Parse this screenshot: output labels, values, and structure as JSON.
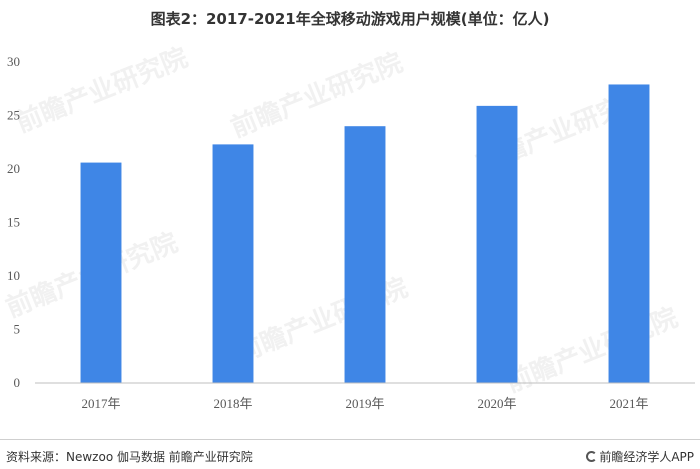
{
  "watermark_text": "前瞻产业研究院",
  "footer": {
    "source": "资料来源：Newzoo 伽马数据 前瞻产业研究院",
    "brand": "前瞻经济学人APP",
    "brand_icon": "qianzhan-logo-icon"
  },
  "chart_data": {
    "type": "bar",
    "title": "图表2：2017-2021年全球移动游戏用户规模(单位：亿人)",
    "xlabel": "",
    "ylabel": "",
    "categories": [
      "2017年",
      "2018年",
      "2019年",
      "2020年",
      "2021年"
    ],
    "series": [
      {
        "values": [
          20.6,
          22.3,
          24.0,
          25.9,
          27.9
        ]
      }
    ],
    "ylim": [
      0,
      30
    ],
    "yticks": [
      0,
      5,
      10,
      15,
      20,
      25,
      30
    ],
    "grid": false,
    "legend": "none",
    "colors": {
      "bar": "#3f86e6",
      "axis": "#bfbfbf"
    }
  }
}
